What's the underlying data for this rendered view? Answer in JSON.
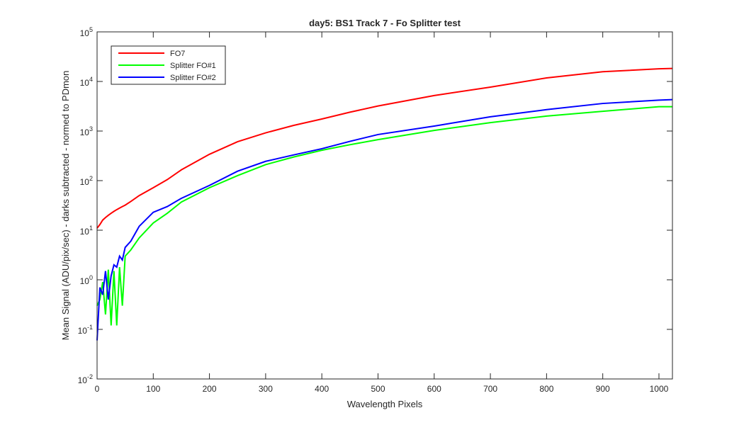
{
  "chart_data": {
    "type": "line",
    "title": "day5: BS1  Track 7 - Fo Splitter test",
    "x_label": "Wavelength Pixels",
    "y_label": "Mean Signal (ADU/pix/sec) - darks subtracted - normed to PDmon",
    "y_scale": "log",
    "legend_position": "upper left",
    "x": [
      0,
      5,
      10,
      15,
      20,
      25,
      30,
      35,
      40,
      45,
      50,
      60,
      75,
      100,
      125,
      150,
      200,
      250,
      300,
      350,
      400,
      450,
      500,
      600,
      700,
      800,
      900,
      1000,
      1024
    ],
    "series": [
      {
        "name": "FO7",
        "color": "#ff0000",
        "values": [
          11,
          13,
          16,
          18,
          20,
          22,
          24,
          26,
          28,
          30,
          32,
          38,
          50,
          72,
          105,
          165,
          340,
          610,
          920,
          1300,
          1750,
          2400,
          3200,
          5200,
          7700,
          11800,
          15700,
          18000,
          18300
        ]
      },
      {
        "name": "Splitter FO#1",
        "color": "#00ff00",
        "values": [
          0.3,
          0.4,
          0.9,
          0.2,
          1.6,
          0.12,
          1.5,
          0.12,
          1.8,
          0.3,
          3,
          4,
          7,
          14,
          22,
          37,
          72,
          126,
          210,
          300,
          410,
          530,
          670,
          1030,
          1480,
          2000,
          2500,
          3100,
          3100
        ]
      },
      {
        "name": "Splitter FO#2",
        "color": "#0000ff",
        "values": [
          0.06,
          0.7,
          0.5,
          1.5,
          0.4,
          1.2,
          2,
          1.8,
          3,
          2.5,
          4.5,
          6,
          12,
          23,
          30,
          44,
          80,
          155,
          245,
          330,
          440,
          620,
          850,
          1260,
          1940,
          2700,
          3600,
          4200,
          4300
        ]
      }
    ],
    "xlim": [
      0,
      1024
    ],
    "xticks": [
      0,
      100,
      200,
      300,
      400,
      500,
      600,
      700,
      800,
      900,
      1000
    ],
    "ylim": [
      0.01,
      100000
    ],
    "yticks": [
      {
        "value": 0.01,
        "label": "10^-2"
      },
      {
        "value": 0.1,
        "label": "10^-1"
      },
      {
        "value": 1,
        "label": "10^0"
      },
      {
        "value": 10,
        "label": "10^1"
      },
      {
        "value": 100,
        "label": "10^2"
      },
      {
        "value": 1000,
        "label": "10^3"
      },
      {
        "value": 10000,
        "label": "10^4"
      },
      {
        "value": 100000,
        "label": "10^5"
      }
    ]
  }
}
